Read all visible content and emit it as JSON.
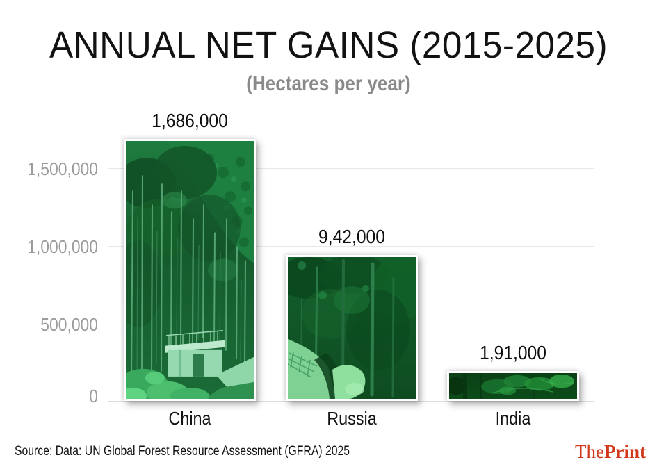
{
  "header": {
    "title": "ANNUAL NET GAINS (2015-2025)",
    "subtitle": "(Hectares per year)"
  },
  "chart_data": {
    "type": "bar",
    "title": "ANNUAL NET GAINS (2015-2025)",
    "subtitle": "(Hectares per year)",
    "unit": "Hectares per year",
    "categories": [
      "China",
      "Russia",
      "India"
    ],
    "values": [
      1686000,
      942000,
      191000
    ],
    "value_labels": [
      "1,686,000",
      "9,42,000",
      "1,91,000"
    ],
    "ylim": [
      0,
      1686000
    ],
    "yticks": [
      0,
      500000,
      1000000,
      1500000
    ],
    "ytick_labels": [
      "0",
      "500,000",
      "1,000,000",
      "1,500,000"
    ],
    "grid": true,
    "legend": "none",
    "bar_style": "green-tinted forest photographs with white border and drop shadow"
  },
  "footer": {
    "source": "Source: Data: UN Global Forest Resource Assessment (GFRA) 2025",
    "logo_the": "The",
    "logo_print": "Print"
  },
  "colors": {
    "title": "#121212",
    "subtitle": "#8a8a8a",
    "tick_label": "#9b9b9b",
    "gridline": "#e8e8e8",
    "axis_line": "#dcdcdc",
    "bar_tint_green": "#155c2c",
    "logo_red": "#d2391b"
  }
}
